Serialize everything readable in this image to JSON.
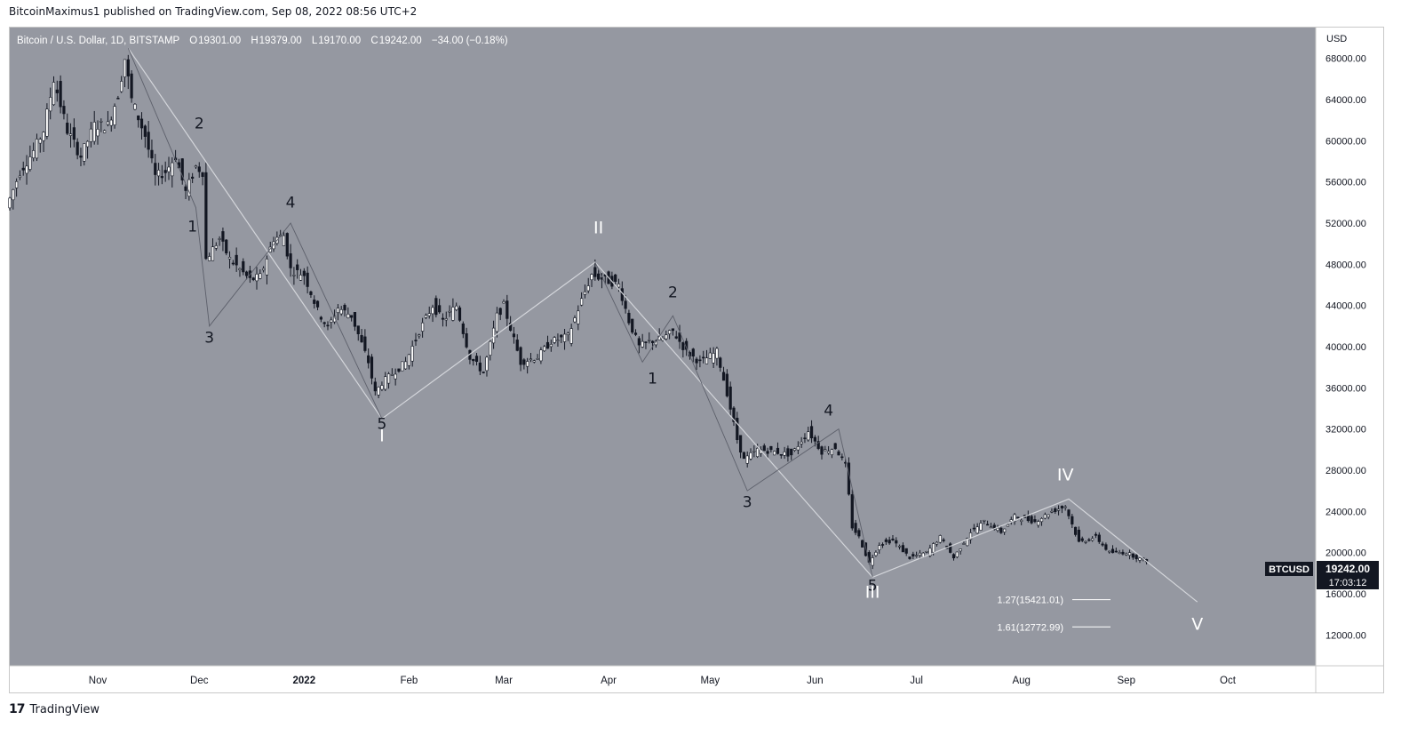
{
  "header": {
    "published_text": "BitcoinMaximus1 published on TradingView.com, Sep 08, 2022 08:56 UTC+2"
  },
  "footer": {
    "brand": "TradingView",
    "logo_glyph": "17"
  },
  "legend": {
    "symbol": "Bitcoin / U.S. Dollar, 1D, BITSTAMP",
    "o_label": "O",
    "o_value": "19301.00",
    "h_label": "H",
    "h_value": "19379.00",
    "l_label": "L",
    "l_value": "19170.00",
    "c_label": "C",
    "c_value": "19242.00",
    "change": "−34.00 (−0.18%)"
  },
  "price_tag": {
    "symbol": "BTCUSD",
    "price": "19242.00",
    "countdown": "17:03:12"
  },
  "fib_levels": [
    {
      "label": "1.27(15421.01)",
      "price": 15421.01
    },
    {
      "label": "1.61(12772.99)",
      "price": 12772.99
    }
  ],
  "colors": {
    "background": "#9598a1",
    "candle": "#131722",
    "wave_line": "#c4c6cc",
    "wave_label_dark": "#131722",
    "wave_label_light": "#ffffff",
    "price_tag_bg": "#131722"
  },
  "chart_data": {
    "type": "candlestick",
    "title": "Bitcoin / U.S. Dollar, 1D, BITSTAMP",
    "currency": "USD",
    "grid": false,
    "ylim": [
      9000,
      71000
    ],
    "y_ticks": [
      "12000.00",
      "16000.00",
      "20000.00",
      "24000.00",
      "28000.00",
      "32000.00",
      "36000.00",
      "40000.00",
      "44000.00",
      "48000.00",
      "52000.00",
      "56000.00",
      "60000.00",
      "64000.00",
      "68000.00"
    ],
    "x_ticks": [
      {
        "label": "Nov",
        "date": "2021-11-01",
        "bold": false
      },
      {
        "label": "Dec",
        "date": "2021-12-01",
        "bold": false
      },
      {
        "label": "2022",
        "date": "2022-01-01",
        "bold": true
      },
      {
        "label": "Feb",
        "date": "2022-02-01",
        "bold": false
      },
      {
        "label": "Mar",
        "date": "2022-03-01",
        "bold": false
      },
      {
        "label": "Apr",
        "date": "2022-04-01",
        "bold": false
      },
      {
        "label": "May",
        "date": "2022-05-01",
        "bold": false
      },
      {
        "label": "Jun",
        "date": "2022-06-01",
        "bold": false
      },
      {
        "label": "Jul",
        "date": "2022-07-01",
        "bold": false
      },
      {
        "label": "Aug",
        "date": "2022-08-01",
        "bold": false
      },
      {
        "label": "Sep",
        "date": "2022-09-01",
        "bold": false
      },
      {
        "label": "Oct",
        "date": "2022-10-01",
        "bold": false
      }
    ],
    "price_path": [
      [
        "2021-10-06",
        53500
      ],
      [
        "2021-10-10",
        57000
      ],
      [
        "2021-10-14",
        59000
      ],
      [
        "2021-10-17",
        61000
      ],
      [
        "2021-10-20",
        66000
      ],
      [
        "2021-10-24",
        61000
      ],
      [
        "2021-10-28",
        58500
      ],
      [
        "2021-11-01",
        61500
      ],
      [
        "2021-11-05",
        61500
      ],
      [
        "2021-11-08",
        64500
      ],
      [
        "2021-11-10",
        68000
      ],
      [
        "2021-11-12",
        64000
      ],
      [
        "2021-11-16",
        60500
      ],
      [
        "2021-11-19",
        56500
      ],
      [
        "2021-11-22",
        57000
      ],
      [
        "2021-11-25",
        58500
      ],
      [
        "2021-11-28",
        55000
      ],
      [
        "2021-12-01",
        57500
      ],
      [
        "2021-12-03",
        57000
      ],
      [
        "2021-12-04",
        48500
      ],
      [
        "2021-12-08",
        50500
      ],
      [
        "2021-12-11",
        48500
      ],
      [
        "2021-12-14",
        47500
      ],
      [
        "2021-12-17",
        46500
      ],
      [
        "2021-12-20",
        46800
      ],
      [
        "2021-12-24",
        50500
      ],
      [
        "2021-12-27",
        50800
      ],
      [
        "2021-12-29",
        47500
      ],
      [
        "2022-01-02",
        47000
      ],
      [
        "2022-01-06",
        43500
      ],
      [
        "2022-01-09",
        41800
      ],
      [
        "2022-01-12",
        43800
      ],
      [
        "2022-01-16",
        43000
      ],
      [
        "2022-01-21",
        38500
      ],
      [
        "2022-01-23",
        35500
      ],
      [
        "2022-01-25",
        36500
      ],
      [
        "2022-02-01",
        38500
      ],
      [
        "2022-02-05",
        41500
      ],
      [
        "2022-02-09",
        44000
      ],
      [
        "2022-02-12",
        42500
      ],
      [
        "2022-02-16",
        44000
      ],
      [
        "2022-02-20",
        39000
      ],
      [
        "2022-02-24",
        37500
      ],
      [
        "2022-02-28",
        43000
      ],
      [
        "2022-03-02",
        44000
      ],
      [
        "2022-03-07",
        38500
      ],
      [
        "2022-03-12",
        39000
      ],
      [
        "2022-03-16",
        40500
      ],
      [
        "2022-03-21",
        41000
      ],
      [
        "2022-03-25",
        44500
      ],
      [
        "2022-03-28",
        47000
      ],
      [
        "2022-04-01",
        46500
      ],
      [
        "2022-04-05",
        46000
      ],
      [
        "2022-04-08",
        42500
      ],
      [
        "2022-04-11",
        40000
      ],
      [
        "2022-04-14",
        40500
      ],
      [
        "2022-04-18",
        40800
      ],
      [
        "2022-04-21",
        41500
      ],
      [
        "2022-04-25",
        39500
      ],
      [
        "2022-04-29",
        38500
      ],
      [
        "2022-05-04",
        39500
      ],
      [
        "2022-05-07",
        35500
      ],
      [
        "2022-05-10",
        31000
      ],
      [
        "2022-05-12",
        29000
      ],
      [
        "2022-05-16",
        30000
      ],
      [
        "2022-05-21",
        29800
      ],
      [
        "2022-05-26",
        29500
      ],
      [
        "2022-05-31",
        31800
      ],
      [
        "2022-06-04",
        29800
      ],
      [
        "2022-06-08",
        30200
      ],
      [
        "2022-06-11",
        28500
      ],
      [
        "2022-06-13",
        22500
      ],
      [
        "2022-06-15",
        21500
      ],
      [
        "2022-06-18",
        19000
      ],
      [
        "2022-06-21",
        20800
      ],
      [
        "2022-06-25",
        21200
      ],
      [
        "2022-06-30",
        19500
      ],
      [
        "2022-07-05",
        20000
      ],
      [
        "2022-07-09",
        21500
      ],
      [
        "2022-07-13",
        19500
      ],
      [
        "2022-07-18",
        22000
      ],
      [
        "2022-07-22",
        23000
      ],
      [
        "2022-07-27",
        22000
      ],
      [
        "2022-07-31",
        23500
      ],
      [
        "2022-08-06",
        23000
      ],
      [
        "2022-08-11",
        24000
      ],
      [
        "2022-08-15",
        24500
      ],
      [
        "2022-08-19",
        21000
      ],
      [
        "2022-08-24",
        21500
      ],
      [
        "2022-08-28",
        20000
      ],
      [
        "2022-09-02",
        20000
      ],
      [
        "2022-09-07",
        19242
      ]
    ],
    "wave_lines": [
      {
        "style": "outer",
        "points": [
          [
            "2021-11-10",
            69000
          ],
          [
            "2022-01-24",
            33000
          ],
          [
            "2022-03-28",
            48200
          ],
          [
            "2022-06-18",
            17600
          ],
          [
            "2022-08-15",
            25200
          ],
          [
            "2022-09-22",
            15200
          ]
        ]
      },
      {
        "style": "inner",
        "points": [
          [
            "2021-11-10",
            69000
          ],
          [
            "2021-11-30",
            53500
          ],
          [
            "2021-12-04",
            42000
          ],
          [
            "2021-12-28",
            52000
          ],
          [
            "2022-01-24",
            33000
          ]
        ]
      },
      {
        "style": "inner",
        "points": [
          [
            "2022-03-28",
            48200
          ],
          [
            "2022-04-11",
            38500
          ],
          [
            "2022-04-20",
            43000
          ],
          [
            "2022-05-12",
            26000
          ],
          [
            "2022-06-08",
            32000
          ],
          [
            "2022-06-18",
            17600
          ]
        ]
      }
    ],
    "wave_labels": [
      {
        "text": "1",
        "date": "2021-11-29",
        "price": 51200,
        "tone": "dark"
      },
      {
        "text": "2",
        "date": "2021-12-01",
        "price": 61200,
        "tone": "dark"
      },
      {
        "text": "3",
        "date": "2021-12-04",
        "price": 40400,
        "tone": "dark"
      },
      {
        "text": "4",
        "date": "2021-12-28",
        "price": 53500,
        "tone": "dark"
      },
      {
        "text": "5",
        "date": "2022-01-24",
        "price": 32000,
        "tone": "dark"
      },
      {
        "text": "I",
        "date": "2022-01-24",
        "price": 30800,
        "tone": "light"
      },
      {
        "text": "II",
        "date": "2022-03-29",
        "price": 51000,
        "tone": "light"
      },
      {
        "text": "1",
        "date": "2022-04-14",
        "price": 36400,
        "tone": "dark"
      },
      {
        "text": "2",
        "date": "2022-04-20",
        "price": 44800,
        "tone": "dark"
      },
      {
        "text": "3",
        "date": "2022-05-12",
        "price": 24400,
        "tone": "dark"
      },
      {
        "text": "4",
        "date": "2022-06-05",
        "price": 33300,
        "tone": "dark"
      },
      {
        "text": "5",
        "date": "2022-06-18",
        "price": 16300,
        "tone": "dark"
      },
      {
        "text": "III",
        "date": "2022-06-18",
        "price": 15600,
        "tone": "light"
      },
      {
        "text": "IV",
        "date": "2022-08-14",
        "price": 27000,
        "tone": "light"
      },
      {
        "text": "V",
        "date": "2022-09-22",
        "price": 12500,
        "tone": "light"
      }
    ]
  }
}
